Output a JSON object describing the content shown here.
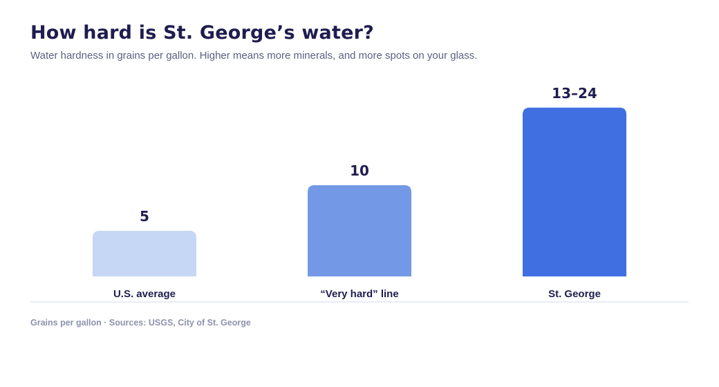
{
  "header": {
    "title": "How hard is St. George’s water?",
    "subtitle": "Water hardness in grains per gallon. Higher means more minerals, and more spots on your glass."
  },
  "chart_data": {
    "type": "bar",
    "categories": [
      "U.S. average",
      "“Very hard” line",
      "St. George"
    ],
    "values": [
      5,
      10,
      18.5
    ],
    "value_labels": [
      "5",
      "10",
      "13–24"
    ],
    "colors": [
      "#c6d6f5",
      "#7399e6",
      "#3f6fe0"
    ],
    "ylim": [
      0,
      20
    ],
    "grid": false
  },
  "footer": {
    "note": "Grains per gallon · Sources: USGS, City of St. George"
  }
}
